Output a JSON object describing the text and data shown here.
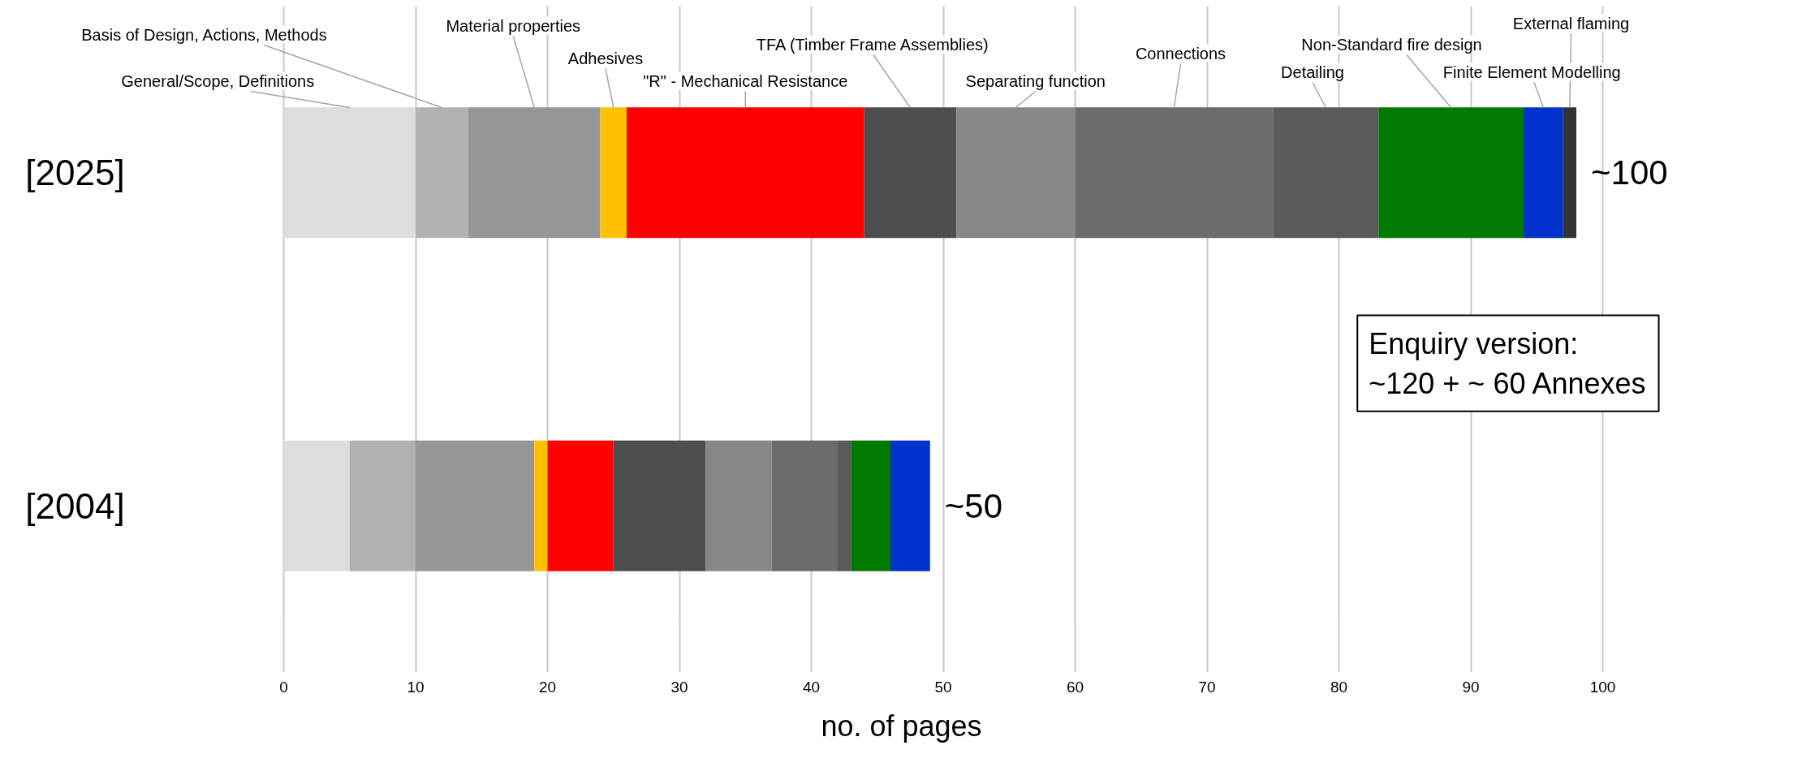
{
  "chart_data": {
    "type": "bar",
    "orientation": "horizontal",
    "stacked": true,
    "categories": [
      "[2025]",
      "[2004]"
    ],
    "series": [
      {
        "name": "General/Scope, Definitions",
        "color": "#dddddd",
        "values": [
          10,
          5
        ]
      },
      {
        "name": "Basis of Design, Actions, Methods",
        "color": "#b2b2b2",
        "values": [
          4,
          5
        ]
      },
      {
        "name": "Material properties",
        "color": "#969696",
        "values": [
          10,
          9
        ]
      },
      {
        "name": "Adhesives",
        "color": "#ffc000",
        "values": [
          2,
          1
        ]
      },
      {
        "name": "\"R\" - Mechanical Resistance",
        "color": "#ff0000",
        "values": [
          18,
          5
        ]
      },
      {
        "name": "TFA (Timber Frame Assemblies)",
        "color": "#4d4d4d",
        "values": [
          7,
          7
        ]
      },
      {
        "name": "Separating function",
        "color": "#878787",
        "values": [
          9,
          5
        ]
      },
      {
        "name": "Connections",
        "color": "#6b6b6b",
        "values": [
          15,
          5
        ]
      },
      {
        "name": "Detailing",
        "color": "#5a5a5a",
        "values": [
          8,
          1
        ]
      },
      {
        "name": "Non-Standard fire design",
        "color": "#007a00",
        "values": [
          11,
          3
        ]
      },
      {
        "name": "Finite Element  Modelling",
        "color": "#0033cc",
        "values": [
          3,
          3
        ]
      },
      {
        "name": "External flaming",
        "color": "#333333",
        "values": [
          1,
          null
        ]
      }
    ],
    "xlim": [
      0,
      100
    ],
    "xticks": [
      0,
      10,
      20,
      30,
      40,
      50,
      60,
      70,
      80,
      90,
      100
    ],
    "xlabel": "no. of pages",
    "grid": "x",
    "totals": [
      "~100",
      "~50"
    ],
    "annotations": [
      "Enquiry version:\n~120 + ~ 60 Annexes"
    ]
  }
}
